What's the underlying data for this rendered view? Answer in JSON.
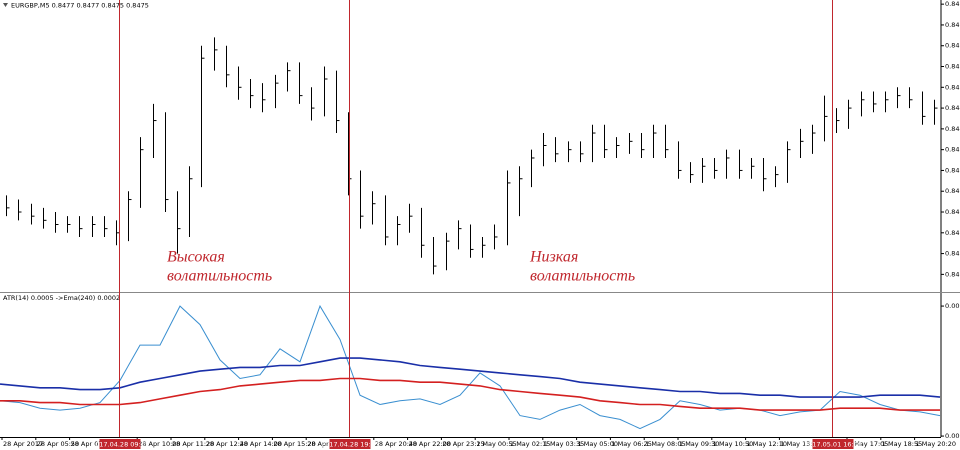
{
  "chart_data": [
    {
      "type": "ohlc",
      "title": "EURGBP,M5  0.8477 0.8477 0.8475 0.8475",
      "color": "#000000",
      "high": [
        0.8424,
        0.8423,
        0.8422,
        0.8421,
        0.842,
        0.8419,
        0.8419,
        0.8419,
        0.8419,
        0.8418,
        0.8425,
        0.8438,
        0.8446,
        0.8444,
        0.8425,
        0.8431,
        0.846,
        0.8462,
        0.846,
        0.8455,
        0.8452,
        0.8451,
        0.8453,
        0.8456,
        0.8456,
        0.845,
        0.8455,
        0.8454,
        0.8444,
        0.843,
        0.8425,
        0.8424,
        0.8419,
        0.8422,
        0.8421,
        0.8414,
        0.8415,
        0.8418,
        0.8417,
        0.8414,
        0.8417,
        0.843,
        0.8431,
        0.8435,
        0.8439,
        0.8438,
        0.8437,
        0.8437,
        0.8441,
        0.8441,
        0.8438,
        0.8439,
        0.8439,
        0.8441,
        0.8441,
        0.8437,
        0.8432,
        0.8433,
        0.8433,
        0.8435,
        0.8435,
        0.8433,
        0.8433,
        0.8431,
        0.8437,
        0.844,
        0.8441,
        0.8448,
        0.8445,
        0.8447,
        0.8449,
        0.8449,
        0.8449,
        0.845,
        0.845,
        0.8449,
        0.8447
      ],
      "low": [
        0.8419,
        0.8418,
        0.8417,
        0.8416,
        0.8415,
        0.8415,
        0.8414,
        0.8414,
        0.8414,
        0.8412,
        0.8413,
        0.8421,
        0.8433,
        0.842,
        0.841,
        0.8414,
        0.8426,
        0.8454,
        0.845,
        0.8447,
        0.8445,
        0.8444,
        0.8445,
        0.8449,
        0.8446,
        0.8442,
        0.8443,
        0.8439,
        0.8424,
        0.8416,
        0.8417,
        0.8412,
        0.8412,
        0.8415,
        0.8409,
        0.8405,
        0.8406,
        0.8411,
        0.8409,
        0.8409,
        0.8411,
        0.8412,
        0.8419,
        0.8426,
        0.8431,
        0.8432,
        0.8432,
        0.8432,
        0.8432,
        0.8433,
        0.8433,
        0.8434,
        0.8433,
        0.8433,
        0.8433,
        0.8428,
        0.8427,
        0.8427,
        0.8428,
        0.8428,
        0.8428,
        0.8428,
        0.8425,
        0.8426,
        0.8427,
        0.8433,
        0.8434,
        0.8437,
        0.8439,
        0.844,
        0.8443,
        0.8444,
        0.8444,
        0.8445,
        0.8445,
        0.8441,
        0.8441
      ],
      "close": [
        0.8421,
        0.842,
        0.8419,
        0.8418,
        0.8417,
        0.8417,
        0.8416,
        0.8417,
        0.8416,
        0.8415,
        0.8423,
        0.8435,
        0.8442,
        0.8423,
        0.8416,
        0.8428,
        0.8457,
        0.8459,
        0.8453,
        0.845,
        0.8448,
        0.8447,
        0.8451,
        0.8454,
        0.8448,
        0.8445,
        0.8452,
        0.8442,
        0.8428,
        0.8419,
        0.8422,
        0.8414,
        0.8417,
        0.8419,
        0.8412,
        0.8407,
        0.8413,
        0.8416,
        0.8411,
        0.8412,
        0.8414,
        0.8427,
        0.8428,
        0.8433,
        0.8436,
        0.8434,
        0.8435,
        0.8434,
        0.8439,
        0.8435,
        0.8436,
        0.8437,
        0.8435,
        0.8439,
        0.8435,
        0.843,
        0.8429,
        0.8431,
        0.843,
        0.8433,
        0.843,
        0.8431,
        0.8428,
        0.8429,
        0.8435,
        0.8437,
        0.8439,
        0.8443,
        0.8442,
        0.8445,
        0.8447,
        0.8446,
        0.8447,
        0.8448,
        0.8447,
        0.8443,
        0.8445
      ],
      "ylim": [
        0.8401,
        0.8471
      ],
      "yticks": [
        {
          "value": 0.847,
          "label": "0.8470"
        },
        0.8465,
        {
          "value": 0.846,
          "label": "0.8460"
        },
        0.8455,
        {
          "value": 0.845,
          "label": "0.8450"
        },
        0.8445,
        {
          "value": 0.844,
          "label": "0.8440"
        },
        0.8435,
        {
          "value": 0.843,
          "label": "0.8430"
        },
        0.8425,
        {
          "value": 0.842,
          "label": "0.8420"
        },
        0.8415,
        {
          "value": 0.841,
          "label": "0.8410"
        },
        0.8405
      ],
      "annotations": [
        [
          "Высокая",
          "волатильность"
        ],
        [
          "Низкая",
          "волатильность"
        ]
      ],
      "annotation_color": "#c0272d"
    },
    {
      "type": "line",
      "title": "ATR(14) 0.0005  ->Ema(240) 0.0002",
      "series": [
        {
          "color": "#3a8fd0",
          "values": [
            0.00029,
            0.00028,
            0.00025,
            0.00024,
            0.00025,
            0.00028,
            0.0004,
            0.00059,
            0.00059,
            0.0008,
            0.0007,
            0.00051,
            0.00041,
            0.00043,
            0.00057,
            0.0005,
            0.0008,
            0.00062,
            0.00032,
            0.00027,
            0.00029,
            0.0003,
            0.00027,
            0.00032,
            0.00044,
            0.00037,
            0.00021,
            0.00019,
            0.00024,
            0.00027,
            0.00021,
            0.00019,
            0.00014,
            0.00019,
            0.00029,
            0.00027,
            0.00024,
            0.00025,
            0.00024,
            0.00021,
            0.00023,
            0.00024,
            0.00034,
            0.00032,
            0.00027,
            0.00024,
            0.00023,
            0.00021
          ]
        },
        {
          "color": "#1a2fa8",
          "values": [
            0.00038,
            0.00037,
            0.00036,
            0.00036,
            0.00035,
            0.00035,
            0.00036,
            0.00039,
            0.00041,
            0.00043,
            0.00045,
            0.00046,
            0.00047,
            0.00047,
            0.00048,
            0.00048,
            0.0005,
            0.00052,
            0.00052,
            0.00051,
            0.0005,
            0.00048,
            0.00047,
            0.00046,
            0.00045,
            0.00044,
            0.00043,
            0.00042,
            0.00041,
            0.00039,
            0.00038,
            0.00037,
            0.00036,
            0.00035,
            0.00034,
            0.00034,
            0.00033,
            0.00033,
            0.00032,
            0.00032,
            0.00031,
            0.00031,
            0.00031,
            0.00031,
            0.00032,
            0.00032,
            0.00032,
            0.00031
          ]
        },
        {
          "color": "#d42020",
          "values": [
            0.00029,
            0.00029,
            0.00028,
            0.00028,
            0.00027,
            0.00027,
            0.00027,
            0.00028,
            0.0003,
            0.00032,
            0.00034,
            0.00035,
            0.00037,
            0.00038,
            0.00039,
            0.0004,
            0.0004,
            0.00041,
            0.00041,
            0.0004,
            0.0004,
            0.00039,
            0.00039,
            0.00038,
            0.00037,
            0.00035,
            0.00034,
            0.00033,
            0.00032,
            0.00031,
            0.00029,
            0.00028,
            0.00027,
            0.00027,
            0.00026,
            0.00025,
            0.00025,
            0.00025,
            0.00024,
            0.00024,
            0.00024,
            0.00024,
            0.00025,
            0.00025,
            0.00025,
            0.00024,
            0.00024,
            0.00024
          ]
        }
      ],
      "ylim": [
        9.5e-05,
        0.000865
      ],
      "yticks": [
        0.0008,
        0.0001
      ],
      "xtick_labels": [
        "28 Apr 2017",
        "28 Apr 05:50",
        "28 Apr 07:20",
        null,
        "28 Apr 10:00",
        "28 Apr 11:20",
        "28 Apr 12:40",
        "28 Apr 14:00",
        "28 Apr 15:20",
        "28 Apr 16:40",
        null,
        "28 Apr 20:40",
        "28 Apr 22:00",
        "28 Apr 23:25",
        "1 May 00:55",
        "1 May 02:15",
        "1 May 03:35",
        "1 May 05:00",
        "1 May 06:25",
        "1 May 08:05",
        "1 May 09:30",
        "1 May 10:50",
        "1 May 12:10",
        "1 May 13:30",
        null,
        "1 May 17:05",
        "1 May 18:55",
        "1 May 20:20"
      ],
      "markers": [
        "2017.04.28 09:05",
        "2017.04.28 19:05",
        "2017.05.01 16:05"
      ],
      "marker_color": "#c0272d"
    }
  ]
}
